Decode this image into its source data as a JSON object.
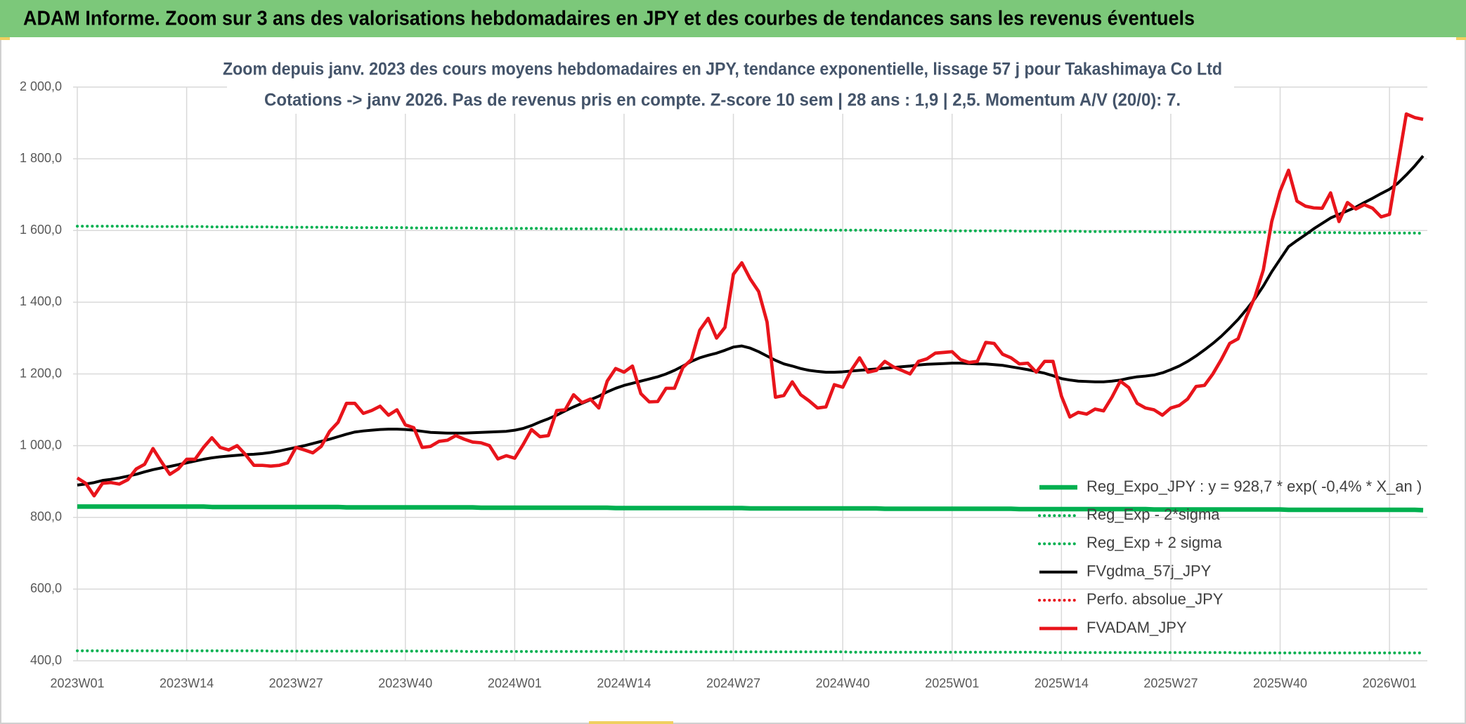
{
  "header": "ADAM Informe. Zoom sur 3 ans des valorisations hebdomadaires en JPY et des courbes de tendances sans les revenus éventuels",
  "chart_data": {
    "type": "line",
    "title": "Zoom depuis janv. 2023 des cours moyens hebdomadaires en JPY, tendance exponentielle, lissage 57 j pour Takashimaya Co Ltd",
    "subtitle": "Cotations -> janv 2026. Pas de revenus pris en compte. Z-score 10 sem | 28 ans : 1,9  | 2,5. Momentum A/V (20/0): 7.",
    "categories": [
      "2023W01",
      null,
      null,
      null,
      null,
      null,
      null,
      null,
      null,
      null,
      null,
      null,
      null,
      "2023W14",
      null,
      null,
      null,
      null,
      null,
      null,
      null,
      null,
      null,
      null,
      null,
      null,
      "2023W27",
      null,
      null,
      null,
      null,
      null,
      null,
      null,
      null,
      null,
      null,
      null,
      null,
      "2023W40",
      null,
      null,
      null,
      null,
      null,
      null,
      null,
      null,
      null,
      null,
      null,
      null,
      "2024W01",
      null,
      null,
      null,
      null,
      null,
      null,
      null,
      null,
      null,
      null,
      null,
      null,
      "2024W14",
      null,
      null,
      null,
      null,
      null,
      null,
      null,
      null,
      null,
      null,
      null,
      null,
      "2024W27",
      null,
      null,
      null,
      null,
      null,
      null,
      null,
      null,
      null,
      null,
      null,
      null,
      "2024W40",
      null,
      null,
      null,
      null,
      null,
      null,
      null,
      null,
      null,
      null,
      null,
      null,
      "2025W01",
      null,
      null,
      null,
      null,
      null,
      null,
      null,
      null,
      null,
      null,
      null,
      null,
      "2025W14",
      null,
      null,
      null,
      null,
      null,
      null,
      null,
      null,
      null,
      null,
      null,
      null,
      "2025W27",
      null,
      null,
      null,
      null,
      null,
      null,
      null,
      null,
      null,
      null,
      null,
      null,
      "2025W40",
      null,
      null,
      null,
      null,
      null,
      null,
      null,
      null,
      null,
      null,
      null,
      null,
      "2026W01",
      null,
      null,
      null,
      null
    ],
    "ylim": [
      400,
      2000
    ],
    "yticks": [
      {
        "value": 400,
        "label": "400,0"
      },
      {
        "value": 600,
        "label": "600,0"
      },
      {
        "value": 800,
        "label": "800,0"
      },
      {
        "value": 1000,
        "label": "1 000,0"
      },
      {
        "value": 1200,
        "label": "1 200,0"
      },
      {
        "value": 1400,
        "label": "1 400,0"
      },
      {
        "value": 1600,
        "label": "1 600,0"
      },
      {
        "value": 1800,
        "label": "1 800,0"
      },
      {
        "value": 2000,
        "label": "2 000,0"
      }
    ],
    "grid": true,
    "series": [
      {
        "name": "Reg_Expo_JPY : y = 928,7 * exp( -0,4% *  X_an )",
        "color": "#00b050",
        "style": "solid",
        "values": [
          830,
          830,
          830,
          830,
          830,
          830,
          830,
          830,
          830,
          830,
          830,
          830,
          830,
          830,
          830,
          830,
          829,
          829,
          829,
          829,
          829,
          829,
          829,
          829,
          829,
          829,
          829,
          829,
          829,
          829,
          829,
          829,
          828,
          828,
          828,
          828,
          828,
          828,
          828,
          828,
          828,
          828,
          828,
          828,
          828,
          828,
          828,
          828,
          827,
          827,
          827,
          827,
          827,
          827,
          827,
          827,
          827,
          827,
          827,
          827,
          827,
          827,
          827,
          827,
          826,
          826,
          826,
          826,
          826,
          826,
          826,
          826,
          826,
          826,
          826,
          826,
          826,
          826,
          826,
          826,
          825,
          825,
          825,
          825,
          825,
          825,
          825,
          825,
          825,
          825,
          825,
          825,
          825,
          825,
          825,
          825,
          824,
          824,
          824,
          824,
          824,
          824,
          824,
          824,
          824,
          824,
          824,
          824,
          824,
          824,
          824,
          824,
          823,
          823,
          823,
          823,
          823,
          823,
          823,
          823,
          823,
          823,
          823,
          823,
          823,
          823,
          823,
          823,
          822,
          822,
          822,
          822,
          822,
          822,
          822,
          822,
          822,
          822,
          822,
          822,
          822,
          822,
          822,
          822,
          821,
          821,
          821,
          821,
          821,
          821,
          821,
          821,
          821,
          821,
          821,
          821,
          821,
          821,
          821,
          821,
          820
        ]
      },
      {
        "name": "Reg_Exp - 2*sigma",
        "color": "#00b050",
        "style": "dotted",
        "values": [
          428,
          428,
          428,
          428,
          428,
          428,
          428,
          428,
          428,
          428,
          428,
          428,
          428,
          428,
          428,
          428,
          428,
          428,
          428,
          428,
          428,
          428,
          428,
          427,
          427,
          427,
          427,
          427,
          427,
          427,
          427,
          427,
          427,
          427,
          427,
          427,
          427,
          427,
          427,
          427,
          427,
          427,
          427,
          427,
          427,
          427,
          426,
          426,
          426,
          426,
          426,
          426,
          426,
          426,
          426,
          426,
          426,
          426,
          426,
          426,
          426,
          426,
          426,
          426,
          426,
          426,
          426,
          426,
          426,
          425,
          425,
          425,
          425,
          425,
          425,
          425,
          425,
          425,
          425,
          425,
          425,
          425,
          425,
          425,
          425,
          425,
          425,
          425,
          425,
          425,
          425,
          425,
          424,
          424,
          424,
          424,
          424,
          424,
          424,
          424,
          424,
          424,
          424,
          424,
          424,
          424,
          424,
          424,
          424,
          424,
          424,
          424,
          424,
          424,
          424,
          423,
          423,
          423,
          423,
          423,
          423,
          423,
          423,
          423,
          423,
          423,
          423,
          423,
          423,
          423,
          423,
          423,
          423,
          423,
          423,
          423,
          423,
          423,
          422,
          422,
          422,
          422,
          422,
          422,
          422,
          422,
          422,
          422,
          422,
          422,
          422,
          422,
          422,
          422,
          422,
          422,
          422,
          422,
          422,
          422,
          422
        ]
      },
      {
        "name": "Reg_Exp + 2 sigma",
        "color": "#00b050",
        "style": "dotted",
        "values": [
          1612,
          1612,
          1612,
          1612,
          1612,
          1612,
          1612,
          1612,
          1611,
          1611,
          1611,
          1611,
          1611,
          1611,
          1611,
          1611,
          1610,
          1610,
          1610,
          1610,
          1610,
          1610,
          1610,
          1610,
          1609,
          1609,
          1609,
          1609,
          1609,
          1609,
          1609,
          1609,
          1608,
          1608,
          1608,
          1608,
          1608,
          1608,
          1608,
          1608,
          1607,
          1607,
          1607,
          1607,
          1607,
          1607,
          1607,
          1607,
          1606,
          1606,
          1606,
          1606,
          1606,
          1606,
          1606,
          1606,
          1605,
          1605,
          1605,
          1605,
          1605,
          1605,
          1605,
          1605,
          1604,
          1604,
          1604,
          1604,
          1604,
          1604,
          1604,
          1604,
          1603,
          1603,
          1603,
          1603,
          1603,
          1603,
          1603,
          1603,
          1602,
          1602,
          1602,
          1602,
          1602,
          1602,
          1602,
          1602,
          1601,
          1601,
          1601,
          1601,
          1601,
          1601,
          1601,
          1601,
          1600,
          1600,
          1600,
          1600,
          1600,
          1600,
          1600,
          1600,
          1599,
          1599,
          1599,
          1599,
          1599,
          1599,
          1599,
          1599,
          1598,
          1598,
          1598,
          1598,
          1598,
          1598,
          1598,
          1598,
          1597,
          1597,
          1597,
          1597,
          1597,
          1597,
          1597,
          1597,
          1596,
          1596,
          1596,
          1596,
          1596,
          1596,
          1596,
          1596,
          1595,
          1595,
          1595,
          1595,
          1595,
          1595,
          1595,
          1595,
          1594,
          1594,
          1594,
          1594,
          1594,
          1594,
          1594,
          1594,
          1593,
          1593,
          1593,
          1593,
          1593,
          1593,
          1593,
          1593,
          1592
        ]
      },
      {
        "name": "FVgdma_57j_JPY",
        "color": "#000000",
        "style": "solid",
        "values": [
          890,
          893,
          897,
          903,
          906,
          910,
          915,
          920,
          927,
          933,
          938,
          942,
          947,
          952,
          957,
          962,
          966,
          969,
          971,
          973,
          975,
          976,
          978,
          981,
          985,
          990,
          995,
          1000,
          1006,
          1012,
          1018,
          1025,
          1032,
          1038,
          1041,
          1043,
          1045,
          1046,
          1046,
          1045,
          1043,
          1040,
          1037,
          1036,
          1035,
          1035,
          1035,
          1036,
          1037,
          1038,
          1039,
          1040,
          1043,
          1048,
          1056,
          1066,
          1075,
          1085,
          1097,
          1108,
          1118,
          1128,
          1138,
          1150,
          1160,
          1168,
          1174,
          1180,
          1186,
          1192,
          1200,
          1210,
          1222,
          1235,
          1245,
          1252,
          1258,
          1266,
          1275,
          1278,
          1272,
          1262,
          1250,
          1238,
          1228,
          1222,
          1215,
          1210,
          1207,
          1205,
          1205,
          1206,
          1208,
          1210,
          1212,
          1214,
          1216,
          1218,
          1220,
          1222,
          1225,
          1227,
          1228,
          1229,
          1230,
          1230,
          1229,
          1228,
          1228,
          1226,
          1224,
          1220,
          1216,
          1212,
          1207,
          1202,
          1195,
          1187,
          1183,
          1180,
          1179,
          1178,
          1178,
          1180,
          1183,
          1188,
          1192,
          1194,
          1197,
          1203,
          1212,
          1222,
          1235,
          1250,
          1267,
          1285,
          1305,
          1328,
          1352,
          1380,
          1410,
          1445,
          1485,
          1520,
          1555,
          1572,
          1588,
          1605,
          1620,
          1635,
          1645,
          1655,
          1665,
          1678,
          1690,
          1703,
          1715,
          1732,
          1755,
          1780,
          1808
        ]
      },
      {
        "name": "Perfo. absolue_JPY",
        "color": "#e8141b",
        "style": "dotted",
        "values": [
          null,
          null,
          null,
          null,
          null,
          null,
          null,
          null,
          null,
          null,
          null,
          null,
          null,
          null,
          null,
          null,
          null,
          null,
          null,
          null,
          null,
          null,
          null,
          null,
          null,
          null,
          null,
          null,
          null,
          null,
          null,
          null,
          null,
          null,
          null,
          null,
          null,
          null,
          null,
          null,
          null,
          null,
          null,
          null,
          null,
          null,
          null,
          null,
          null,
          null,
          null,
          null,
          null,
          null,
          null,
          null,
          null,
          null,
          null,
          null,
          null,
          null,
          null,
          null,
          null,
          null,
          null,
          null,
          null,
          null,
          null,
          null,
          null,
          null,
          null,
          null,
          null,
          null,
          null,
          null,
          null,
          null,
          null,
          null,
          null,
          null,
          null,
          null,
          null,
          null,
          null,
          null,
          null,
          null,
          null,
          null,
          null,
          null,
          null,
          null,
          null,
          null,
          null,
          null,
          null,
          null,
          null,
          null,
          null,
          null,
          null,
          null,
          null,
          null,
          null,
          null,
          null,
          null,
          null,
          null,
          null,
          null,
          null,
          null,
          null,
          null,
          null,
          null,
          null,
          null,
          null,
          null,
          null,
          null,
          null,
          null,
          null,
          null,
          null,
          null,
          null,
          null,
          null,
          null,
          null,
          null,
          null,
          null,
          null,
          null,
          null,
          null,
          null,
          null,
          null,
          null,
          null,
          null,
          null,
          null,
          null
        ]
      },
      {
        "name": "FVADAM_JPY",
        "color": "#e8141b",
        "style": "solid",
        "values": [
          910,
          895,
          860,
          895,
          897,
          893,
          905,
          935,
          948,
          992,
          955,
          920,
          935,
          962,
          962,
          995,
          1022,
          995,
          988,
          1000,
          975,
          945,
          945,
          943,
          945,
          952,
          995,
          988,
          980,
          998,
          1040,
          1065,
          1118,
          1118,
          1090,
          1098,
          1110,
          1085,
          1100,
          1058,
          1050,
          995,
          998,
          1012,
          1015,
          1028,
          1018,
          1010,
          1008,
          1000,
          963,
          972,
          965,
          1003,
          1045,
          1025,
          1028,
          1098,
          1100,
          1142,
          1120,
          1130,
          1105,
          1180,
          1215,
          1205,
          1222,
          1145,
          1122,
          1123,
          1160,
          1160,
          1218,
          1240,
          1322,
          1355,
          1300,
          1330,
          1478,
          1510,
          1465,
          1430,
          1345,
          1135,
          1140,
          1178,
          1142,
          1125,
          1105,
          1108,
          1170,
          1163,
          1210,
          1245,
          1205,
          1210,
          1235,
          1220,
          1210,
          1200,
          1235,
          1242,
          1258,
          1260,
          1262,
          1240,
          1232,
          1235,
          1288,
          1285,
          1255,
          1245,
          1228,
          1230,
          1205,
          1235,
          1235,
          1138,
          1080,
          1093,
          1088,
          1102,
          1097,
          1135,
          1180,
          1162,
          1118,
          1105,
          1100,
          1085,
          1105,
          1112,
          1130,
          1165,
          1168,
          1200,
          1240,
          1285,
          1298,
          1360,
          1415,
          1490,
          1625,
          1710,
          1768,
          1682,
          1668,
          1663,
          1662,
          1705,
          1625,
          1678,
          1660,
          1672,
          1662,
          1638,
          1645,
          1785,
          1925,
          1915,
          1910
        ]
      }
    ]
  }
}
